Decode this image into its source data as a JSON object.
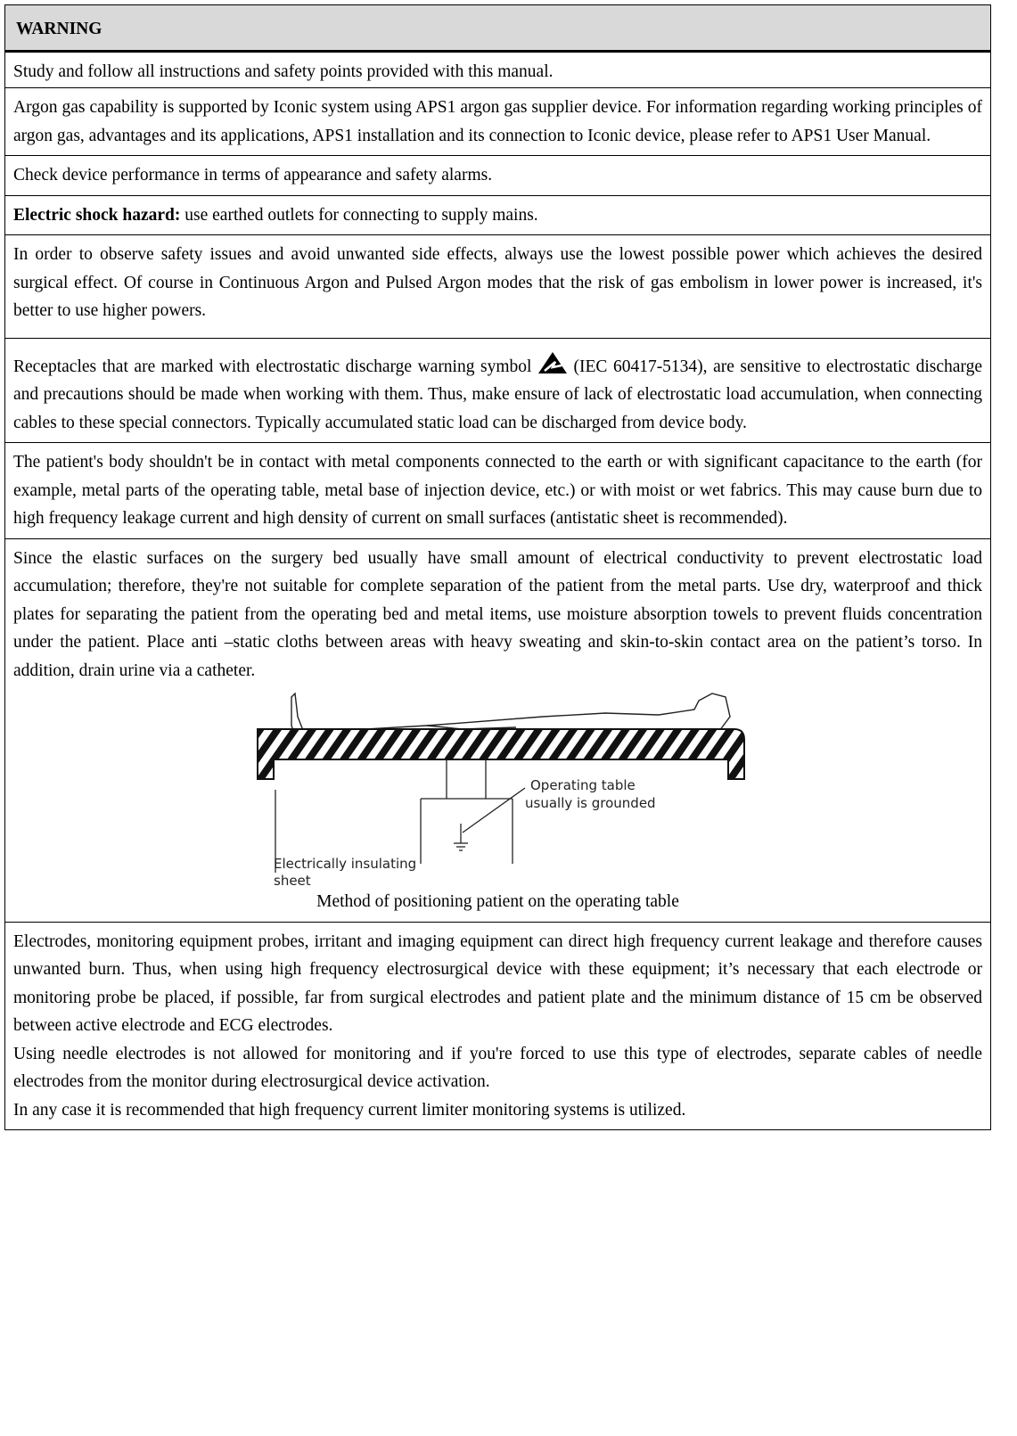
{
  "header": {
    "title": "WARNING"
  },
  "rows": [
    {
      "text": "Study and follow all instructions and safety points provided with this manual."
    },
    {
      "text": "Argon gas capability is supported by Iconic system using APS1 argon gas supplier device. For information regarding working principles of argon gas, advantages and its applications, APS1 installation and its connection to Iconic device, please refer to APS1 User Manual."
    },
    {
      "text": "Check device performance in terms of appearance and safety alarms."
    },
    {
      "bold": "Electric shock hazard:",
      "text": " use earthed outlets for connecting to supply mains."
    },
    {
      "text": "In order to observe safety issues and avoid unwanted side effects, always use the lowest possible power which achieves the desired surgical effect. Of course in Continuous Argon and Pulsed Argon modes that the risk of gas embolism in lower power is increased, it's better to use higher powers."
    },
    {
      "text_before": "Receptacles that are marked with electrostatic discharge warning symbol ",
      "text_after": " (IEC 60417-5134), are sensitive to electrostatic discharge and precautions should be made when working with them. Thus, make ensure of lack of electrostatic load accumulation, when connecting cables to these special connectors. Typically accumulated static load can be discharged from device body."
    },
    {
      "text": "The patient's body shouldn't be in contact with metal components connected to the earth or with significant capacitance to the earth (for example, metal parts of the operating table, metal base of injection device, etc.) or with moist or wet fabrics. This may cause burn due to high frequency leakage current and high density of current on small surfaces (antistatic sheet is recommended)."
    },
    {
      "text": "Since the elastic surfaces on the surgery bed usually have small amount of electrical conductivity to prevent electrostatic load accumulation; therefore, they're not suitable for complete separation of the patient from the metal parts. Use dry, waterproof and thick plates for separating the patient from the operating bed and metal items, use moisture absorption towels to prevent fluids concentration under the patient. Place anti –static cloths between areas with heavy sweating and skin-to-skin contact area on the patient’s torso. In addition, drain urine via a catheter.",
      "figure": {
        "table_label": [
          "Operating table",
          "usually is grounded"
        ],
        "sheet_label": [
          "Electrically insulating",
          "sheet"
        ],
        "caption": "Method of positioning patient on the operating table"
      }
    },
    {
      "paragraphs": [
        "Electrodes, monitoring equipment probes, irritant and imaging equipment can direct high frequency current leakage and therefore causes unwanted burn. Thus, when using high frequency electrosurgical device with these equipment; it’s necessary that each electrode or monitoring probe be placed, if possible, far from surgical electrodes and patient plate and the minimum distance of 15 cm be observed between active electrode and ECG electrodes.",
        "Using needle electrodes is not allowed for monitoring and if you're forced to use this type of electrodes, separate cables of needle electrodes from the monitor during electrosurgical device activation.",
        "In any case it is recommended that high frequency current limiter monitoring systems is utilized."
      ]
    }
  ]
}
